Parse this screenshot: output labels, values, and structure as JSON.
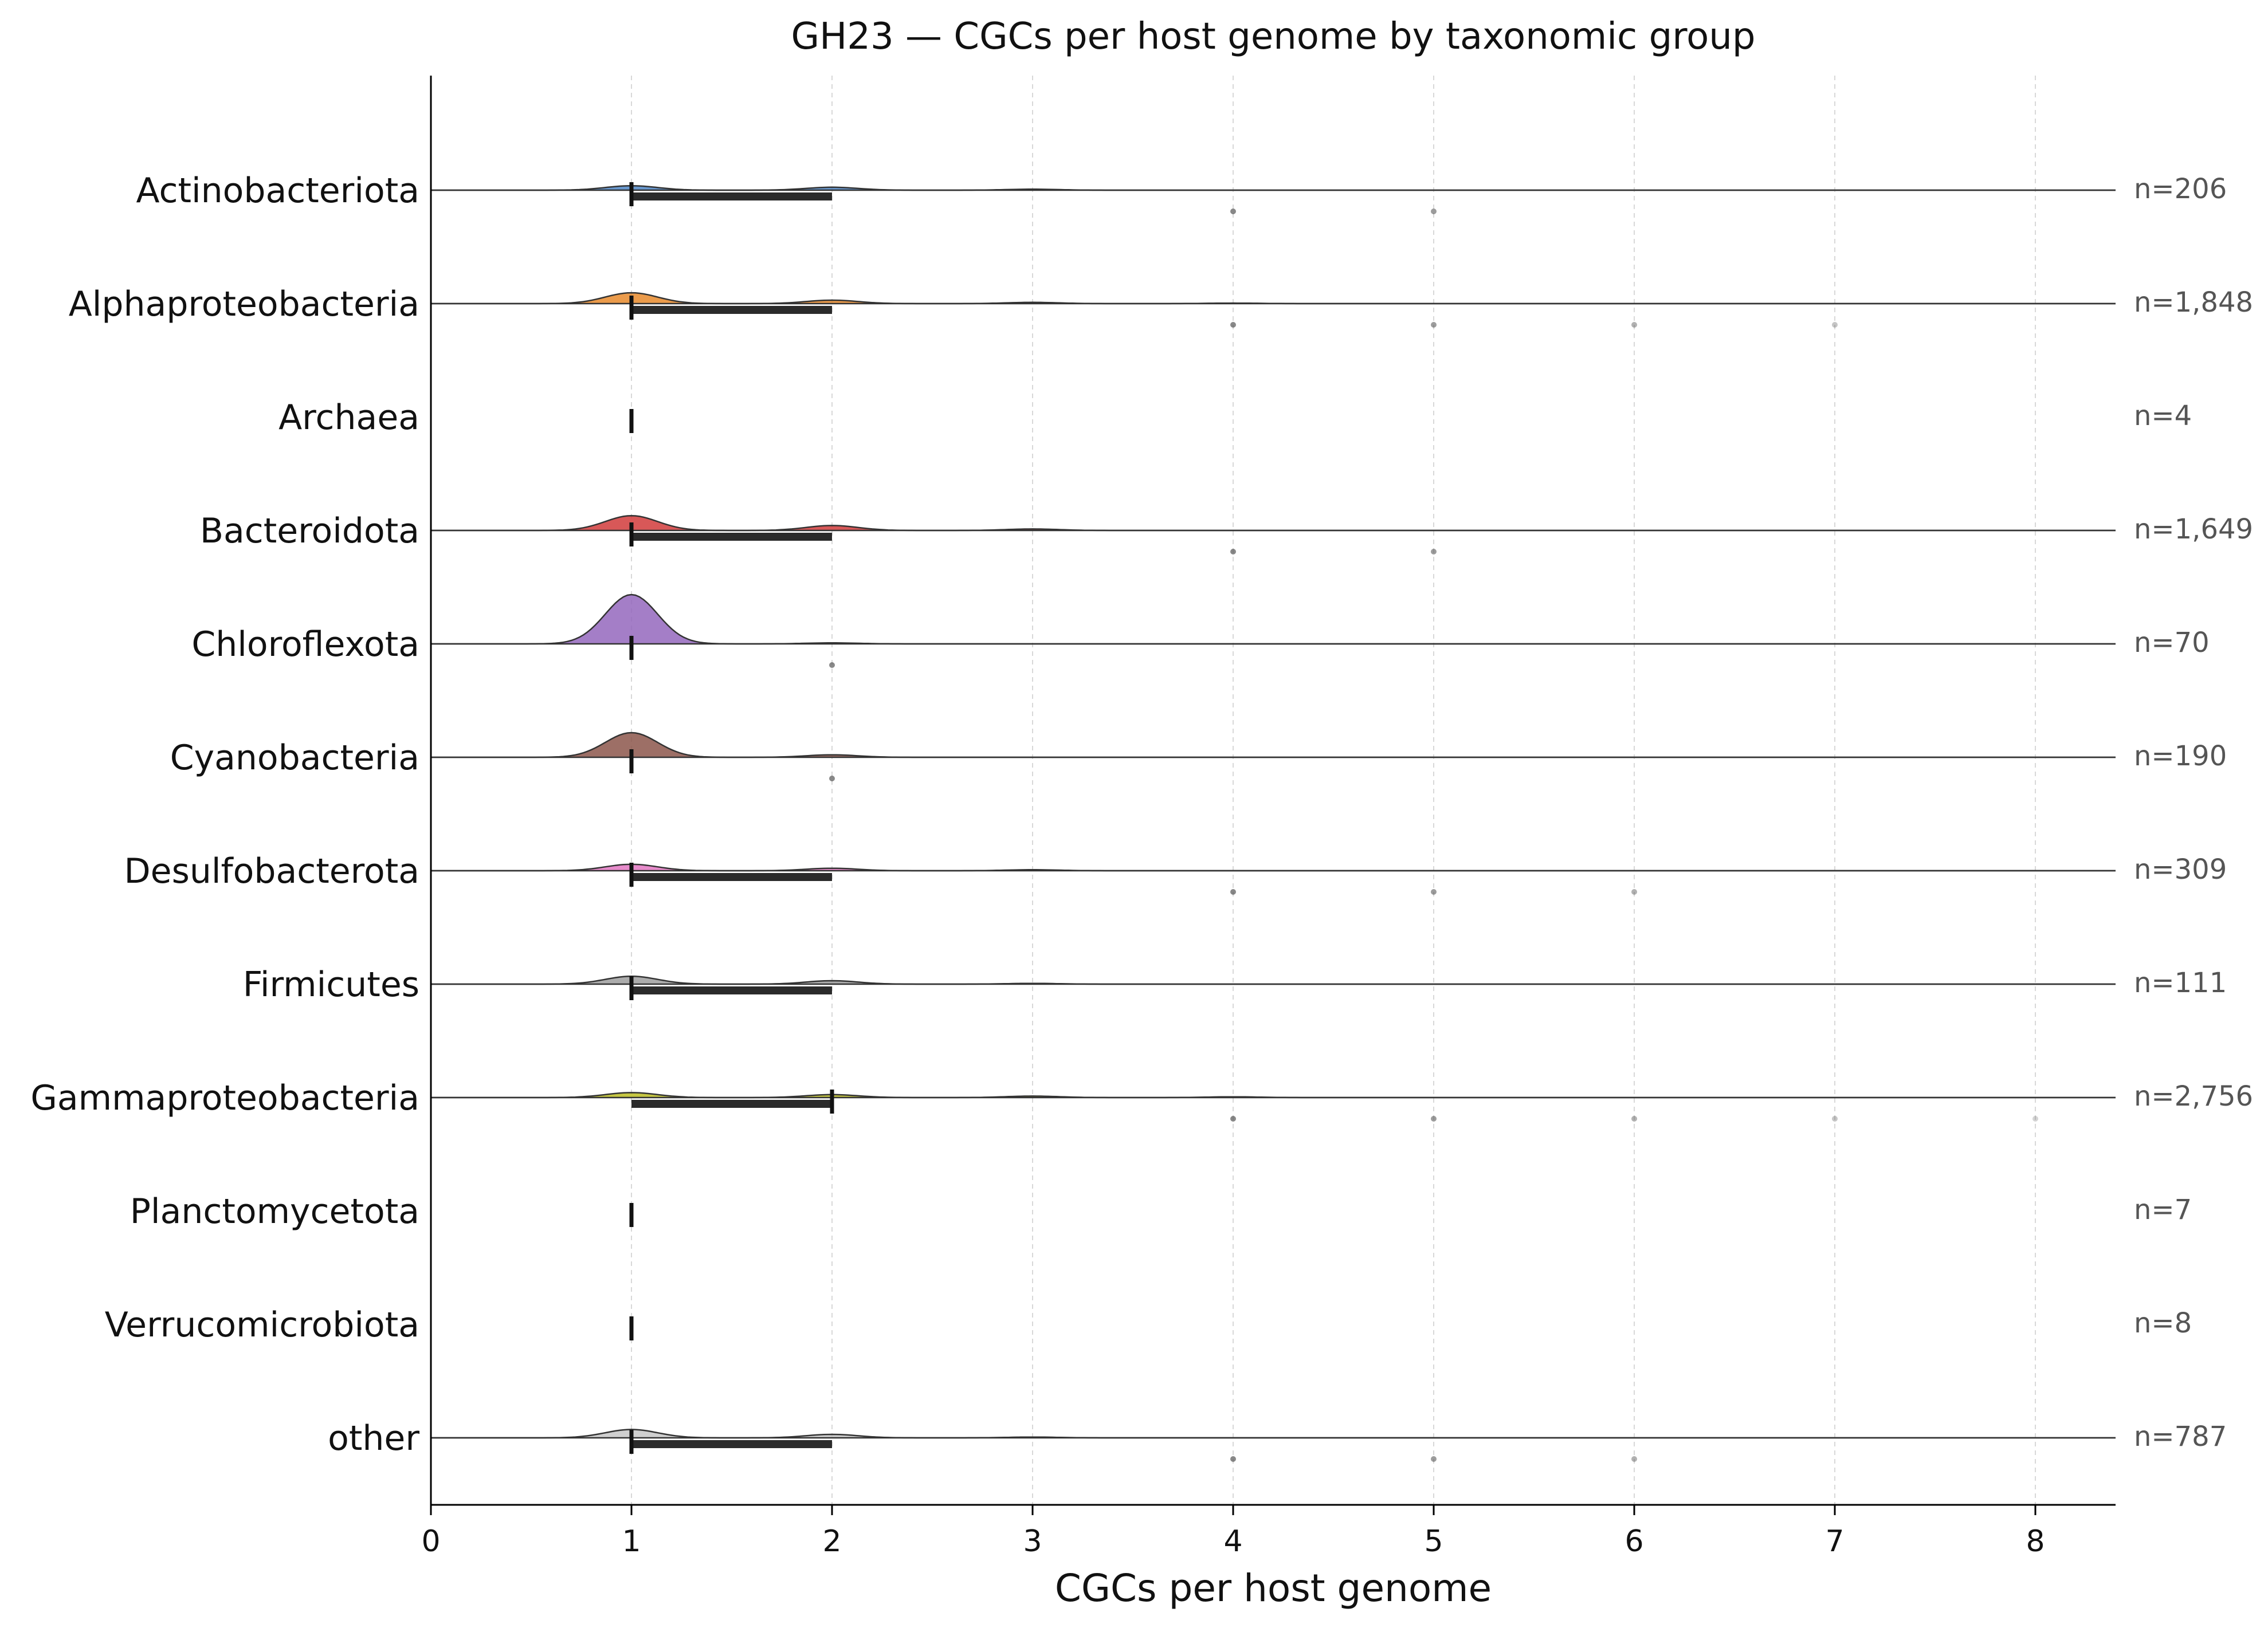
{
  "chart_data": {
    "type": "ridgeline",
    "title": "GH23 — CGCs per host genome by taxonomic group",
    "xlabel": "CGCs per host genome",
    "ylabel": "",
    "xlim": [
      0,
      8.4
    ],
    "xticks": [
      0,
      1,
      2,
      3,
      4,
      5,
      6,
      7,
      8
    ],
    "grid": "vertical dashed",
    "groups": [
      {
        "name": "Actinobacteriota",
        "n_label": "n=206",
        "color": "#4f86c6",
        "peaks": [
          [
            1,
            0.09
          ],
          [
            2,
            0.06
          ],
          [
            3,
            0.02
          ]
        ],
        "median": 1,
        "iqr": [
          1,
          2
        ],
        "outliers": [
          4,
          5
        ]
      },
      {
        "name": "Alphaproteobacteria",
        "n_label": "n=1,848",
        "color": "#e8892b",
        "peaks": [
          [
            1,
            0.22
          ],
          [
            2,
            0.07
          ],
          [
            3,
            0.025
          ],
          [
            4,
            0.01
          ]
        ],
        "median": 1,
        "iqr": [
          1,
          2
        ],
        "outliers": [
          4,
          5,
          6,
          7
        ]
      },
      {
        "name": "Archaea",
        "n_label": "n=4",
        "color": "#2ca02c",
        "peaks": [],
        "median": 1,
        "iqr": null,
        "outliers": []
      },
      {
        "name": "Bacteroidota",
        "n_label": "n=1,649",
        "color": "#d13b3b",
        "peaks": [
          [
            1,
            0.3
          ],
          [
            2,
            0.1
          ],
          [
            3,
            0.03
          ]
        ],
        "median": 1,
        "iqr": [
          1,
          2
        ],
        "outliers": [
          4,
          5
        ]
      },
      {
        "name": "Chloroflexota",
        "n_label": "n=70",
        "color": "#9467bd",
        "peaks": [
          [
            1,
            1.0
          ],
          [
            2,
            0.02
          ]
        ],
        "median": 1,
        "iqr": null,
        "outliers": [
          2
        ]
      },
      {
        "name": "Cyanobacteria",
        "n_label": "n=190",
        "color": "#8c564b",
        "peaks": [
          [
            1,
            0.5
          ],
          [
            2,
            0.05
          ]
        ],
        "median": 1,
        "iqr": null,
        "outliers": [
          2
        ]
      },
      {
        "name": "Desulfobacterota",
        "n_label": "n=309",
        "color": "#e377c2",
        "peaks": [
          [
            1,
            0.13
          ],
          [
            2,
            0.05
          ],
          [
            3,
            0.02
          ]
        ],
        "median": 1,
        "iqr": [
          1,
          2
        ],
        "outliers": [
          4,
          5,
          6
        ]
      },
      {
        "name": "Firmicutes",
        "n_label": "n=111",
        "color": "#9e9e9e",
        "peaks": [
          [
            1,
            0.16
          ],
          [
            2,
            0.07
          ],
          [
            3,
            0.015
          ]
        ],
        "median": 1,
        "iqr": [
          1,
          2
        ],
        "outliers": []
      },
      {
        "name": "Gammaproteobacteria",
        "n_label": "n=2,756",
        "color": "#bcbd22",
        "peaks": [
          [
            1,
            0.1
          ],
          [
            2,
            0.06
          ],
          [
            3,
            0.03
          ],
          [
            4,
            0.015
          ]
        ],
        "median": 2,
        "iqr": [
          1,
          2
        ],
        "outliers": [
          4,
          5,
          6,
          7,
          8
        ]
      },
      {
        "name": "Planctomycetota",
        "n_label": "n=7",
        "color": "#17becf",
        "peaks": [],
        "median": 1,
        "iqr": null,
        "outliers": []
      },
      {
        "name": "Verrucomicrobiota",
        "n_label": "n=8",
        "color": "#1f77b4",
        "peaks": [],
        "median": 1,
        "iqr": null,
        "outliers": []
      },
      {
        "name": "other",
        "n_label": "n=787",
        "color": "#c7c7c7",
        "peaks": [
          [
            1,
            0.17
          ],
          [
            2,
            0.07
          ],
          [
            3,
            0.015
          ]
        ],
        "median": 1,
        "iqr": [
          1,
          2
        ],
        "outliers": [
          4,
          5,
          6
        ]
      }
    ]
  }
}
